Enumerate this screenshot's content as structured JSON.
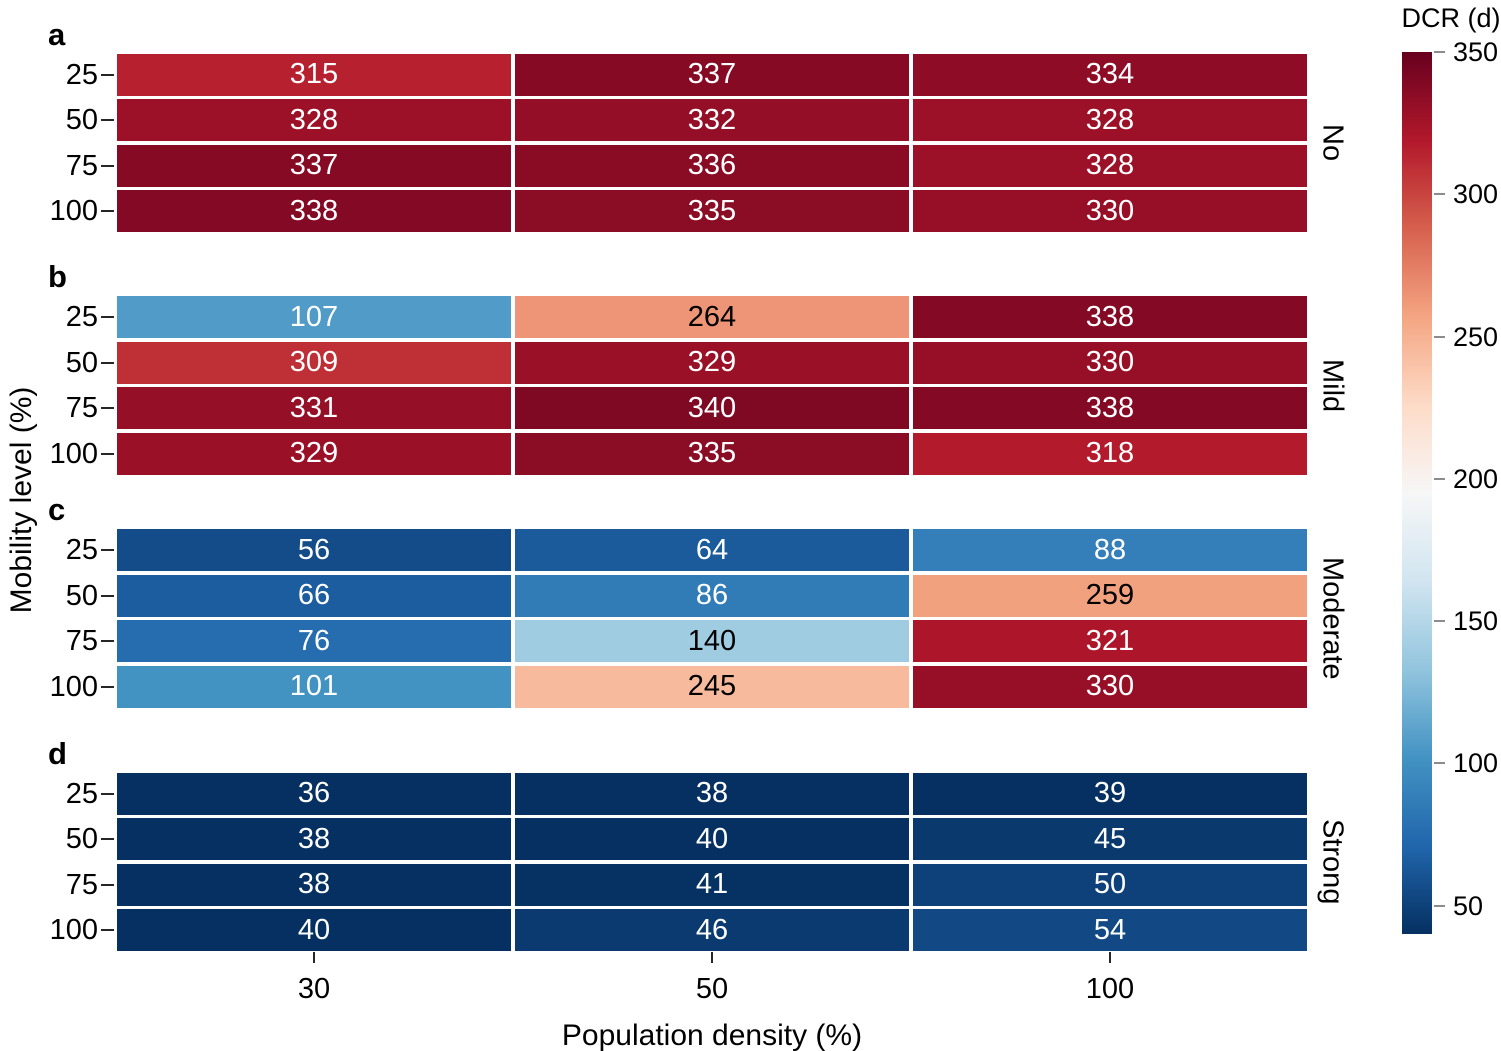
{
  "chart_data": {
    "type": "heatmap",
    "xlabel": "Population density (%)",
    "ylabel": "Mobility level (%)",
    "x_categories": [
      "30",
      "50",
      "100"
    ],
    "y_categories": [
      "25",
      "50",
      "75",
      "100"
    ],
    "panels": [
      {
        "letter": "a",
        "label": "No",
        "values": [
          [
            315,
            337,
            334
          ],
          [
            328,
            332,
            328
          ],
          [
            337,
            336,
            328
          ],
          [
            338,
            335,
            330
          ]
        ]
      },
      {
        "letter": "b",
        "label": "Mild",
        "values": [
          [
            107,
            264,
            338
          ],
          [
            309,
            329,
            330
          ],
          [
            331,
            340,
            338
          ],
          [
            329,
            335,
            318
          ]
        ]
      },
      {
        "letter": "c",
        "label": "Moderate",
        "values": [
          [
            56,
            64,
            88
          ],
          [
            66,
            86,
            259
          ],
          [
            76,
            140,
            321
          ],
          [
            101,
            245,
            330
          ]
        ]
      },
      {
        "letter": "d",
        "label": "Strong",
        "values": [
          [
            36,
            38,
            39
          ],
          [
            38,
            40,
            45
          ],
          [
            38,
            41,
            50
          ],
          [
            40,
            46,
            54
          ]
        ]
      }
    ],
    "colorbar": {
      "title": "DCR (d)",
      "ticks": [
        350,
        300,
        250,
        200,
        150,
        100,
        50
      ],
      "vmin": 40,
      "vmax": 350
    },
    "colormap": [
      "#053061",
      "#2166ac",
      "#4393c3",
      "#92c5de",
      "#d1e5f0",
      "#f7f7f7",
      "#fddbc7",
      "#f4a582",
      "#d6604d",
      "#b2182b",
      "#67001f"
    ],
    "cell_text_colors": {
      "on_dark": "#ffffff",
      "on_light": "#000000"
    },
    "legend_position": "right",
    "grid": false
  }
}
